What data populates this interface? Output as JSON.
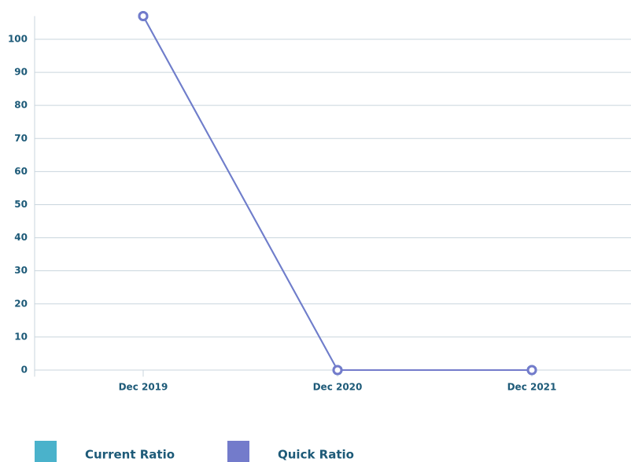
{
  "chart_data": {
    "type": "line",
    "categories": [
      "Dec 2019",
      "Dec 2020",
      "Dec 2021"
    ],
    "series": [
      {
        "name": "Current Ratio",
        "color": "#4ab2cb",
        "values": [
          107,
          0,
          0
        ]
      },
      {
        "name": "Quick Ratio",
        "color": "#737bcb",
        "values": [
          107,
          0,
          0
        ]
      }
    ],
    "ylim": [
      -2,
      107
    ],
    "yticks": [
      0,
      10,
      20,
      30,
      40,
      50,
      60,
      70,
      80,
      90,
      100
    ],
    "grid": true,
    "legend": "bottom"
  }
}
